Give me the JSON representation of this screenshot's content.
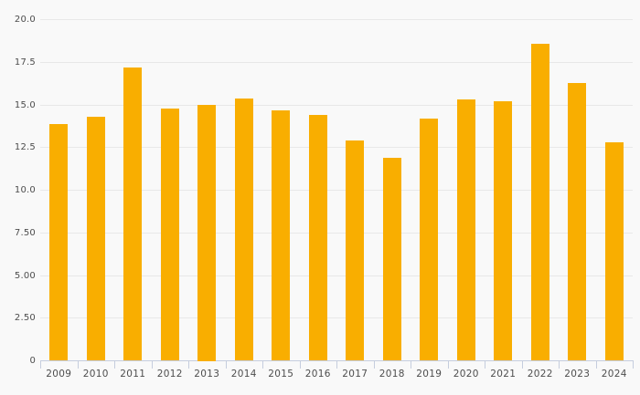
{
  "theme": {
    "background": "#f9f9f9",
    "bar_color": "#F9AE00",
    "grid_color": "#e8e8e8",
    "axis_color": "#c5cdde",
    "label_color": "#4d4d4d"
  },
  "chart_data": {
    "type": "bar",
    "title": "",
    "xlabel": "",
    "ylabel": "",
    "categories": [
      "2009",
      "2010",
      "2011",
      "2012",
      "2013",
      "2014",
      "2015",
      "2016",
      "2017",
      "2018",
      "2019",
      "2020",
      "2021",
      "2022",
      "2023",
      "2024"
    ],
    "values": [
      13.9,
      14.3,
      17.2,
      14.8,
      15.0,
      15.4,
      14.7,
      14.4,
      12.9,
      11.9,
      14.2,
      15.3,
      15.2,
      18.6,
      16.3,
      12.8
    ],
    "ylim": [
      0,
      20
    ],
    "y_ticks": [
      {
        "label": "20.0",
        "value": 20
      },
      {
        "label": "17.5",
        "value": 17.5
      },
      {
        "label": "15.0",
        "value": 15
      },
      {
        "label": "12.5",
        "value": 12.5
      },
      {
        "label": "10.0",
        "value": 10
      },
      {
        "label": "7.50",
        "value": 7.5
      },
      {
        "label": "5.00",
        "value": 5
      },
      {
        "label": "2.50",
        "value": 2.5
      },
      {
        "label": "0",
        "value": 0
      }
    ],
    "grid": true,
    "legend": "none"
  }
}
